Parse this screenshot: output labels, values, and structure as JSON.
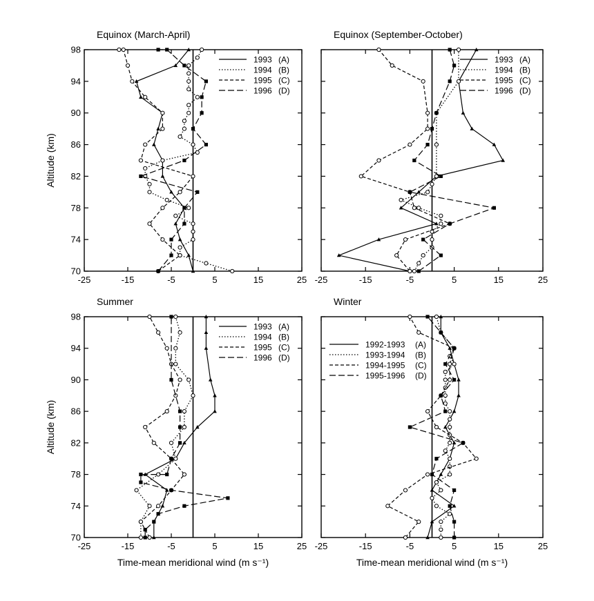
{
  "chart_data": [
    {
      "type": "line",
      "title": "Equinox (March-April)",
      "xlabel": "",
      "ylabel": "Altitude (km)",
      "xlim": [
        -25,
        25
      ],
      "ylim": [
        70,
        98
      ],
      "xticks": [
        -25,
        -15,
        -5,
        5,
        15,
        25
      ],
      "xtick_labels": [
        "-25",
        "-15",
        "-5",
        "5",
        "15",
        "25"
      ],
      "yticks": [
        70,
        74,
        78,
        82,
        86,
        90,
        94,
        98
      ],
      "ytick_labels": [
        "70",
        "74",
        "78",
        "82",
        "86",
        "90",
        "94",
        "98"
      ],
      "legend": {
        "position": "top-right",
        "labels": [
          "1993",
          "1994",
          "1995",
          "1996"
        ],
        "tags": [
          "(A)",
          "(B)",
          "(C)",
          "(D)"
        ]
      },
      "series": [
        {
          "name": "1993",
          "tag": "(A)",
          "style": "solid",
          "marker": "triangle",
          "x": [
            0,
            -1,
            -3,
            -4,
            -2,
            -5,
            -7,
            -7,
            -9,
            -8,
            -7,
            -12,
            -13,
            -4,
            -1
          ],
          "y": [
            70,
            72,
            74,
            76,
            78,
            80,
            82,
            84,
            86,
            88,
            90,
            92,
            94,
            96,
            98
          ]
        },
        {
          "name": "1994",
          "tag": "(B)",
          "style": "dotted",
          "marker": "circle",
          "x": [
            9,
            3,
            -3,
            -3,
            0,
            0,
            0,
            -4,
            -1,
            -6,
            -10,
            -10,
            -11,
            -11,
            -7,
            1,
            0,
            -3,
            -2,
            -2,
            -1,
            -1,
            1,
            -1,
            -1,
            -1,
            -1,
            1,
            2
          ],
          "y": [
            70,
            71,
            72,
            73,
            74,
            75,
            76,
            77,
            78,
            79,
            80,
            81,
            82,
            83,
            84,
            85,
            86,
            87,
            88,
            89,
            90,
            91,
            92,
            93,
            94,
            95,
            96,
            97,
            98
          ]
        },
        {
          "name": "1995",
          "tag": "(C)",
          "style": "dashed",
          "marker": "circle",
          "x": [
            -8,
            -3,
            -7,
            -10,
            -7,
            -3,
            0,
            -12,
            -11,
            -7,
            -7,
            -11,
            -14,
            -15,
            -16,
            -17
          ],
          "y": [
            70,
            72,
            74,
            76,
            78,
            80,
            82,
            84,
            86,
            88,
            90,
            92,
            94,
            96,
            98,
            98
          ]
        },
        {
          "name": "1996",
          "tag": "(D)",
          "style": "long-dashed",
          "marker": "square",
          "x": [
            -8,
            -5,
            -5,
            -2,
            -2,
            1,
            -12,
            -2,
            3,
            0,
            2,
            2,
            3,
            -2,
            -6,
            -8
          ],
          "y": [
            70,
            72,
            74,
            76,
            78,
            80,
            82,
            84,
            86,
            88,
            90,
            92,
            94,
            96,
            98,
            98
          ]
        }
      ]
    },
    {
      "type": "line",
      "title": "Equinox (September-October)",
      "xlabel": "",
      "ylabel": "",
      "xlim": [
        -25,
        25
      ],
      "ylim": [
        70,
        98
      ],
      "xticks": [
        -25,
        -15,
        -5,
        5,
        15,
        25
      ],
      "xtick_labels": [
        "-25",
        "-15",
        "-5",
        "5",
        "15",
        "25"
      ],
      "yticks": [
        70,
        74,
        78,
        82,
        86,
        90,
        94,
        98
      ],
      "ytick_labels": [
        "",
        "",
        "",
        "",
        "",
        "",
        "",
        ""
      ],
      "legend": {
        "position": "top-right",
        "labels": [
          "1993",
          "1994",
          "1995",
          "1996"
        ],
        "tags": [
          "(A)",
          "(B)",
          "(C)",
          "(D)"
        ]
      },
      "series": [
        {
          "name": "1993",
          "tag": "(A)",
          "style": "solid",
          "marker": "triangle",
          "x": [
            -5,
            -21,
            -12,
            1,
            -7,
            -3,
            1,
            16,
            14,
            9,
            7,
            6,
            10
          ],
          "y": [
            70,
            72,
            74,
            76,
            78,
            80,
            82,
            84,
            86,
            88,
            90,
            94,
            98
          ]
        },
        {
          "name": "1994",
          "tag": "(B)",
          "style": "dotted",
          "marker": "circle",
          "x": [
            -4,
            -3,
            -2,
            0,
            0,
            0,
            2,
            2,
            -3,
            -7,
            -1,
            0,
            1,
            1,
            1,
            6,
            6
          ],
          "y": [
            70,
            71,
            72,
            73,
            74,
            75,
            76,
            77,
            78,
            79,
            80,
            81,
            82,
            86,
            90,
            94,
            98
          ]
        },
        {
          "name": "1995",
          "tag": "(C)",
          "style": "dashed",
          "marker": "circle",
          "x": [
            -5,
            -8,
            -6,
            4,
            -4,
            -5,
            -16,
            -12,
            -5,
            -1,
            -1,
            -2,
            -9,
            -12
          ],
          "y": [
            70,
            72,
            74,
            76,
            78,
            80,
            82,
            84,
            86,
            88,
            90,
            94,
            96,
            98
          ]
        },
        {
          "name": "1996",
          "tag": "(D)",
          "style": "long-dashed",
          "marker": "square",
          "x": [
            -3,
            2,
            -2,
            4,
            14,
            -5,
            2,
            -4,
            -1,
            0,
            1,
            4,
            5,
            4
          ],
          "y": [
            70,
            72,
            74,
            76,
            78,
            80,
            82,
            84,
            86,
            88,
            90,
            94,
            96,
            98
          ]
        }
      ]
    },
    {
      "type": "line",
      "title": "Summer",
      "xlabel": "Time-mean meridional wind (m s⁻¹)",
      "ylabel": "Altitude (km)",
      "xlim": [
        -25,
        25
      ],
      "ylim": [
        70,
        98
      ],
      "xticks": [
        -25,
        -15,
        -5,
        5,
        15,
        25
      ],
      "xtick_labels": [
        "-25",
        "-15",
        "-5",
        "5",
        "15",
        "25"
      ],
      "yticks": [
        70,
        74,
        78,
        82,
        86,
        90,
        94,
        98
      ],
      "ytick_labels": [
        "70",
        "74",
        "78",
        "82",
        "86",
        "90",
        "94",
        "98"
      ],
      "legend": {
        "position": "top-right",
        "labels": [
          "1993",
          "1994",
          "1995",
          "1996"
        ],
        "tags": [
          "(A)",
          "(B)",
          "(C)",
          "(D)"
        ]
      },
      "series": [
        {
          "name": "1993",
          "tag": "(A)",
          "style": "solid",
          "marker": "triangle",
          "x": [
            -9,
            -9,
            -7,
            -6,
            -11,
            -4,
            -2,
            1,
            5,
            5,
            4,
            3,
            3,
            3
          ],
          "y": [
            70,
            72,
            74,
            76,
            78,
            80,
            82,
            84,
            86,
            88,
            90,
            94,
            96,
            98
          ]
        },
        {
          "name": "1994",
          "tag": "(B)",
          "style": "dotted",
          "marker": "circle",
          "x": [
            -12,
            -12,
            -10,
            -13,
            -8,
            -4,
            -5,
            -2,
            -2,
            0,
            -1,
            -4,
            -4,
            -3,
            -4
          ],
          "y": [
            70,
            72,
            74,
            76,
            78,
            80,
            82,
            84,
            86,
            88,
            90,
            92,
            94,
            96,
            98
          ]
        },
        {
          "name": "1995",
          "tag": "(C)",
          "style": "dashed",
          "marker": "circle",
          "x": [
            -10,
            -12,
            -8,
            -5,
            -2,
            -5,
            -9,
            -11,
            -6,
            -4,
            -3,
            -5,
            -6,
            -8,
            -10
          ],
          "y": [
            70,
            72,
            74,
            76,
            78,
            80,
            82,
            84,
            86,
            88,
            90,
            92,
            94,
            96,
            98
          ]
        },
        {
          "name": "1996",
          "tag": "(D)",
          "style": "long-dashed",
          "marker": "square",
          "x": [
            -11,
            -11,
            -9,
            -8,
            -2,
            8,
            -5,
            -12,
            -12,
            -6,
            -5,
            -3,
            -3,
            -3,
            -5,
            -5
          ],
          "y": [
            70,
            71,
            72,
            73,
            74,
            75,
            76,
            77,
            78,
            78,
            80,
            82,
            84,
            86,
            90,
            98
          ]
        }
      ]
    },
    {
      "type": "line",
      "title": "Winter",
      "xlabel": "Time-mean meridional wind (m s⁻¹)",
      "ylabel": "",
      "xlim": [
        -25,
        25
      ],
      "ylim": [
        70,
        98
      ],
      "xticks": [
        -25,
        -15,
        -5,
        5,
        15,
        25
      ],
      "xtick_labels": [
        "-25",
        "-15",
        "-5",
        "5",
        "15",
        "25"
      ],
      "yticks": [
        70,
        74,
        78,
        82,
        86,
        90,
        94,
        98
      ],
      "ytick_labels": [
        "",
        "",
        "",
        "",
        "",
        "",
        "",
        ""
      ],
      "legend": {
        "position": "top-left",
        "labels": [
          "1992-1993",
          "1993-1994",
          "1994-1995",
          "1995-1996"
        ],
        "tags": [
          "(A)",
          "(B)",
          "(C)",
          "(D)"
        ]
      },
      "series": [
        {
          "name": "1992-1993",
          "tag": "(A)",
          "style": "solid",
          "marker": "triangle",
          "x": [
            -1,
            0,
            5,
            0,
            2,
            4,
            5,
            3,
            5,
            6,
            6,
            5,
            4,
            2,
            2
          ],
          "y": [
            70,
            72,
            74,
            76,
            78,
            80,
            82,
            84,
            86,
            88,
            90,
            92,
            94,
            96,
            98
          ]
        },
        {
          "name": "1993-1994",
          "tag": "(B)",
          "style": "dotted",
          "marker": "circle",
          "x": [
            2,
            2,
            2,
            4,
            1,
            0,
            2,
            1,
            4,
            4,
            4,
            3,
            4,
            4,
            4,
            4,
            4,
            3,
            3,
            3,
            3,
            3,
            5,
            4,
            5,
            2,
            1
          ],
          "y": [
            70,
            71,
            72,
            73,
            74,
            75,
            76,
            77,
            78,
            79,
            80,
            81,
            82,
            83,
            84,
            85,
            86,
            87,
            88,
            89,
            90,
            91,
            92,
            93,
            94,
            96,
            98
          ]
        },
        {
          "name": "1994-1995",
          "tag": "(C)",
          "style": "dashed",
          "marker": "circle",
          "x": [
            -6,
            -3,
            -10,
            -6,
            -1,
            10,
            7,
            1,
            -1,
            2,
            4,
            4,
            5,
            -3,
            -5
          ],
          "y": [
            70,
            72,
            74,
            76,
            78,
            80,
            82,
            84,
            86,
            88,
            90,
            92,
            94,
            96,
            98
          ]
        },
        {
          "name": "1995-1996",
          "tag": "(D)",
          "style": "long-dashed",
          "marker": "square",
          "x": [
            5,
            5,
            4,
            5,
            0,
            1,
            7,
            -5,
            3,
            2,
            5,
            3,
            5,
            2,
            -1
          ],
          "y": [
            70,
            72,
            74,
            76,
            78,
            80,
            82,
            84,
            86,
            88,
            90,
            92,
            94,
            96,
            98
          ]
        }
      ]
    }
  ]
}
